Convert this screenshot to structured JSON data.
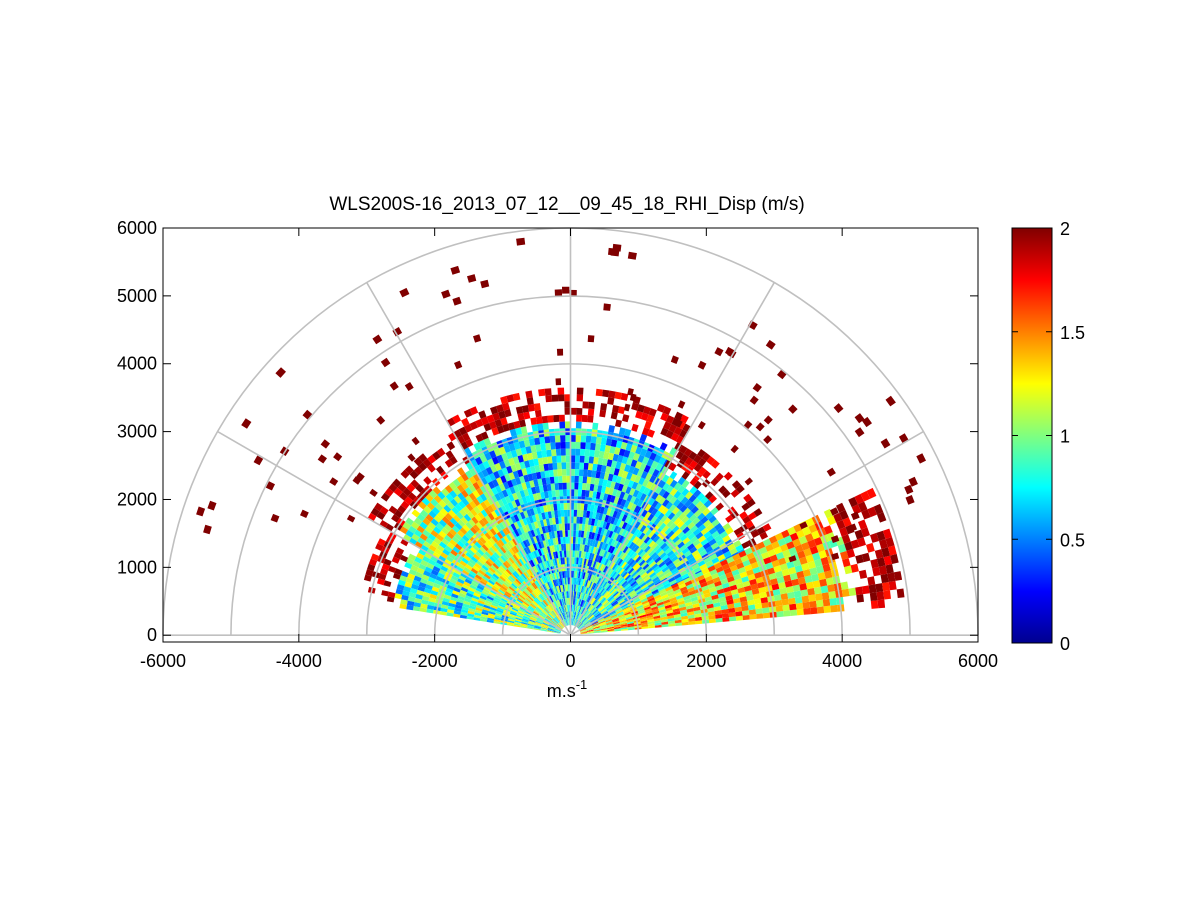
{
  "chart_data": {
    "type": "heatmap",
    "title": "WLS200S-16_2013_07_12__09_45_18_RHI_Disp (m/s)",
    "xlabel": "m.s",
    "xlabel_superscript": "-1",
    "ylabel": "",
    "xlim": [
      -6000,
      6000
    ],
    "ylim": [
      -100,
      6000
    ],
    "xticks": [
      "-6000",
      "-4000",
      "-2000",
      "0",
      "2000",
      "4000",
      "6000"
    ],
    "yticks": [
      "0",
      "1000",
      "2000",
      "3000",
      "4000",
      "5000",
      "6000"
    ],
    "polar_grid": {
      "rings": [
        1000,
        2000,
        3000,
        4000,
        5000,
        6000
      ],
      "spokes_deg": [
        0,
        30,
        60,
        90,
        120,
        150,
        180
      ]
    },
    "colorbar": {
      "min": 0,
      "max": 2,
      "ticks": [
        "0",
        "0.5",
        "1",
        "1.5",
        "2"
      ],
      "colormap": "jet"
    },
    "sectors": [
      {
        "label": "left low-elevation sector",
        "azimuth_deg": [
          150,
          170
        ],
        "range_m": [
          0,
          3100
        ],
        "typical_value": 0.9
      },
      {
        "label": "left mid sector",
        "azimuth_deg": [
          120,
          150
        ],
        "range_m": [
          0,
          3400
        ],
        "typical_value": 1.1
      },
      {
        "label": "central sector",
        "azimuth_deg": [
          60,
          120
        ],
        "range_m": [
          0,
          3600
        ],
        "typical_value": 0.7
      },
      {
        "label": "right sector",
        "azimuth_deg": [
          25,
          60
        ],
        "range_m": [
          0,
          3300
        ],
        "typical_value": 0.8
      },
      {
        "label": "right low-elevation sector",
        "azimuth_deg": [
          5,
          25
        ],
        "range_m": [
          0,
          4900
        ],
        "typical_value": 1.3
      }
    ]
  }
}
